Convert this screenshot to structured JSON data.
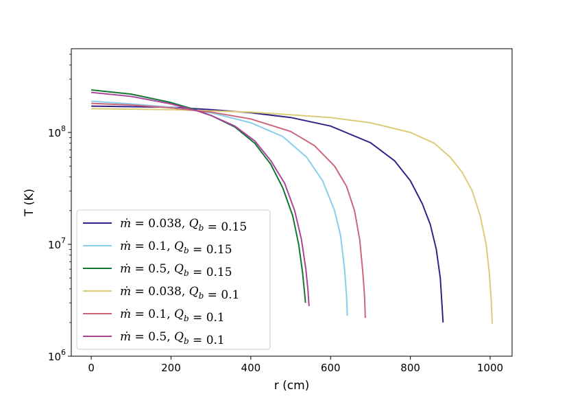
{
  "chart_data": {
    "type": "line",
    "xlabel": "r (cm)",
    "ylabel": "T (K)",
    "xlim": [
      -50,
      1055
    ],
    "ylim": [
      1000000,
      560000000
    ],
    "yscale": "log",
    "x_ticks": [
      0,
      200,
      400,
      600,
      800,
      1000
    ],
    "x_tick_labels": [
      "0",
      "200",
      "400",
      "600",
      "800",
      "1000"
    ],
    "y_ticks": [
      1000000,
      10000000,
      100000000
    ],
    "y_tick_labels": [
      {
        "base": "10",
        "exp": "6"
      },
      {
        "base": "10",
        "exp": "7"
      },
      {
        "base": "10",
        "exp": "8"
      }
    ],
    "grid": false,
    "legend_position": "lower-left",
    "series": [
      {
        "name": "ṁ = 0.038, Q_b = 0.15",
        "label_parts": {
          "m": "0.038",
          "q": "0.15"
        },
        "color": "#332288",
        "r_end": 882,
        "points": [
          [
            0,
            172000000.0
          ],
          [
            200,
            168000000.0
          ],
          [
            300,
            160000000.0
          ],
          [
            400,
            150000000.0
          ],
          [
            500,
            136000000.0
          ],
          [
            600,
            114000000.0
          ],
          [
            700,
            81000000.0
          ],
          [
            760,
            56000000.0
          ],
          [
            800,
            37000000.0
          ],
          [
            830,
            23000000.0
          ],
          [
            850,
            15000000.0
          ],
          [
            865,
            9000000.0
          ],
          [
            875,
            5000000.0
          ],
          [
            882,
            2000000.0
          ]
        ]
      },
      {
        "name": "ṁ = 0.1, Q_b = 0.15",
        "label_parts": {
          "m": "0.1",
          "q": "0.15"
        },
        "color": "#88ccee",
        "r_end": 642,
        "points": [
          [
            0,
            190000000.0
          ],
          [
            100,
            180000000.0
          ],
          [
            200,
            168000000.0
          ],
          [
            300,
            150000000.0
          ],
          [
            400,
            122000000.0
          ],
          [
            480,
            92000000.0
          ],
          [
            540,
            60000000.0
          ],
          [
            580,
            37000000.0
          ],
          [
            610,
            20000000.0
          ],
          [
            625,
            12000000.0
          ],
          [
            635,
            6000000.0
          ],
          [
            640,
            3500000.0
          ],
          [
            642,
            2300000.0
          ]
        ]
      },
      {
        "name": "ṁ = 0.5, Q_b = 0.15",
        "label_parts": {
          "m": "0.5",
          "q": "0.15"
        },
        "color": "#117733",
        "r_end": 537,
        "points": [
          [
            0,
            240000000.0
          ],
          [
            100,
            220000000.0
          ],
          [
            200,
            185000000.0
          ],
          [
            260,
            160000000.0
          ],
          [
            300,
            142000000.0
          ],
          [
            360,
            112000000.0
          ],
          [
            410,
            80000000.0
          ],
          [
            450,
            52000000.0
          ],
          [
            480,
            32000000.0
          ],
          [
            505,
            18000000.0
          ],
          [
            520,
            10000000.0
          ],
          [
            530,
            5500000.0
          ],
          [
            535,
            3600000.0
          ],
          [
            537,
            3000000.0
          ]
        ]
      },
      {
        "name": "ṁ = 0.038, Q_b = 0.1",
        "label_parts": {
          "m": "0.038",
          "q": "0.1"
        },
        "color": "#ddcc77",
        "r_end": 1005,
        "points": [
          [
            0,
            163000000.0
          ],
          [
            200,
            160000000.0
          ],
          [
            400,
            152000000.0
          ],
          [
            600,
            136000000.0
          ],
          [
            700,
            122000000.0
          ],
          [
            800,
            100000000.0
          ],
          [
            860,
            80000000.0
          ],
          [
            900,
            60000000.0
          ],
          [
            930,
            44000000.0
          ],
          [
            955,
            30000000.0
          ],
          [
            975,
            18000000.0
          ],
          [
            990,
            10000000.0
          ],
          [
            998,
            5500000.0
          ],
          [
            1003,
            3000000.0
          ],
          [
            1005,
            1950000.0
          ]
        ]
      },
      {
        "name": "ṁ = 0.1, Q_b = 0.1",
        "label_parts": {
          "m": "0.1",
          "q": "0.1"
        },
        "color": "#cc6677",
        "r_end": 687,
        "points": [
          [
            0,
            182000000.0
          ],
          [
            100,
            176000000.0
          ],
          [
            200,
            166000000.0
          ],
          [
            300,
            152000000.0
          ],
          [
            400,
            132000000.0
          ],
          [
            500,
            102000000.0
          ],
          [
            560,
            76000000.0
          ],
          [
            610,
            50000000.0
          ],
          [
            640,
            33000000.0
          ],
          [
            660,
            20000000.0
          ],
          [
            673,
            11000000.0
          ],
          [
            681,
            5500000.0
          ],
          [
            685,
            3500000.0
          ],
          [
            687,
            2200000.0
          ]
        ]
      },
      {
        "name": "ṁ = 0.5, Q_b = 0.1",
        "label_parts": {
          "m": "0.5",
          "q": "0.1"
        },
        "color": "#aa4499",
        "r_end": 546,
        "points": [
          [
            0,
            228000000.0
          ],
          [
            100,
            210000000.0
          ],
          [
            200,
            180000000.0
          ],
          [
            260,
            158000000.0
          ],
          [
            300,
            142000000.0
          ],
          [
            360,
            114000000.0
          ],
          [
            410,
            84000000.0
          ],
          [
            450,
            56000000.0
          ],
          [
            485,
            35000000.0
          ],
          [
            510,
            20000000.0
          ],
          [
            527,
            11000000.0
          ],
          [
            538,
            6000000.0
          ],
          [
            543,
            4000000.0
          ],
          [
            546,
            2800000.0
          ]
        ]
      }
    ]
  }
}
